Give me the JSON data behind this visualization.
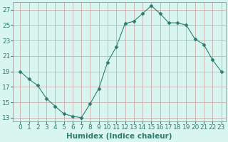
{
  "xlabel": "Humidex (Indice chaleur)",
  "x": [
    0,
    1,
    2,
    3,
    4,
    5,
    6,
    7,
    8,
    9,
    10,
    11,
    12,
    13,
    14,
    15,
    16,
    17,
    18,
    19,
    20,
    21,
    22,
    23
  ],
  "y": [
    19.0,
    18.0,
    17.2,
    15.5,
    14.5,
    13.5,
    13.2,
    13.0,
    14.8,
    16.8,
    20.2,
    22.2,
    25.2,
    25.5,
    26.5,
    27.5,
    26.5,
    25.3,
    25.3,
    25.0,
    23.2,
    22.5,
    20.5,
    19.0
  ],
  "line_color": "#2e7d6e",
  "marker": "D",
  "marker_size": 2.5,
  "bg_color": "#d8f5f0",
  "grid_color": "#c8a0a0",
  "ylim": [
    12.5,
    28.0
  ],
  "yticks": [
    13,
    15,
    17,
    19,
    21,
    23,
    25,
    27
  ],
  "xticks": [
    0,
    1,
    2,
    3,
    4,
    5,
    6,
    7,
    8,
    9,
    10,
    11,
    12,
    13,
    14,
    15,
    16,
    17,
    18,
    19,
    20,
    21,
    22,
    23
  ],
  "tick_color": "#2e7d6e",
  "label_color": "#2e7d6e",
  "xlabel_fontsize": 7.5,
  "tick_fontsize": 6.5
}
